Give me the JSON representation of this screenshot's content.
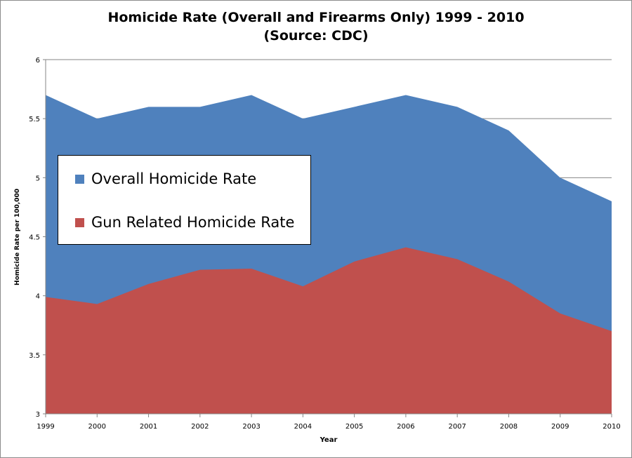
{
  "colors": {
    "overall": "#4f81bd",
    "gun": "#c0504d",
    "grid": "#868686",
    "axis": "#868686"
  },
  "chart_data": {
    "type": "area",
    "title_line1": "Homicide Rate (Overall and Firearms Only) 1999 - 2010",
    "title_line2": "(Source: CDC)",
    "xlabel": "Year",
    "ylabel": "Homicide Rate per 100,000",
    "x": [
      "1999",
      "2000",
      "2001",
      "2002",
      "2003",
      "2004",
      "2005",
      "2006",
      "2007",
      "2008",
      "2009",
      "2010"
    ],
    "ylim": [
      3,
      6
    ],
    "yticks": [
      "3",
      "3.5",
      "4",
      "4.5",
      "5",
      "5.5",
      "6"
    ],
    "grid": true,
    "legend_placement": "left",
    "series": [
      {
        "name": "Overall Homicide Rate",
        "values": [
          5.7,
          5.5,
          5.6,
          5.6,
          5.7,
          5.5,
          5.6,
          5.7,
          5.6,
          5.4,
          5.0,
          4.8
        ]
      },
      {
        "name": "Gun Related Homicide Rate",
        "values": [
          3.99,
          3.93,
          4.1,
          4.22,
          4.23,
          4.08,
          4.29,
          4.41,
          4.31,
          4.12,
          3.85,
          3.7
        ]
      }
    ]
  }
}
